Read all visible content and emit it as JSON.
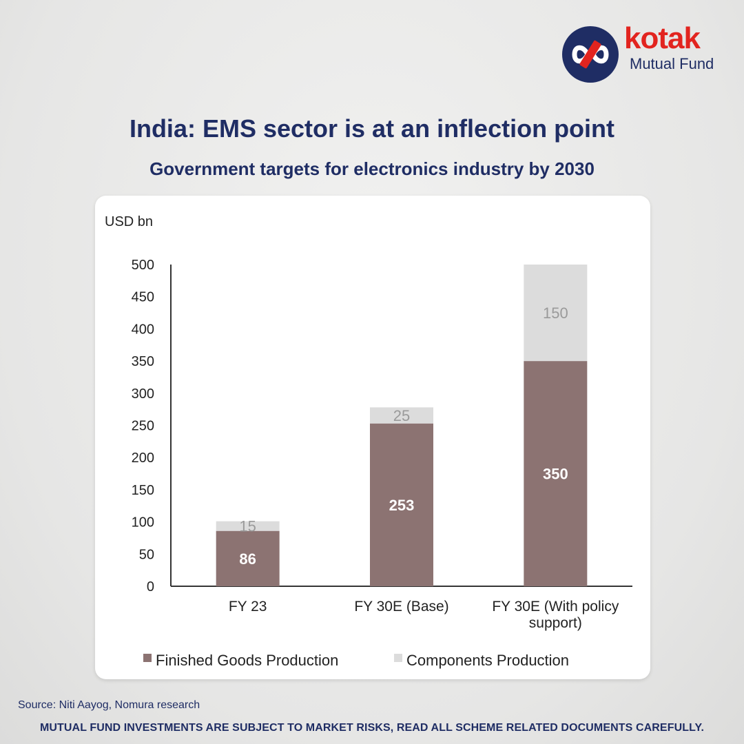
{
  "brand": {
    "name": "kotak",
    "tagline": "Mutual Fund"
  },
  "colors": {
    "navy": "#1f2d64",
    "brand_red": "#e2241f",
    "finished_goods": "#8c7372",
    "components": "#dcdcdc"
  },
  "icons": {
    "logo": "kotak-infinity-logo-icon"
  },
  "title": "India: EMS sector is at an inflection point",
  "subtitle": "Government targets for electronics industry by 2030",
  "source": "Source: Niti Aayog, Nomura research",
  "disclaimer": "MUTUAL FUND INVESTMENTS ARE SUBJECT TO MARKET RISKS, READ ALL SCHEME RELATED DOCUMENTS CAREFULLY.",
  "chart_data": {
    "type": "bar",
    "stacked": true,
    "ylabel": "USD bn",
    "xlabel": "",
    "ylim": [
      0,
      500
    ],
    "yticks": [
      0,
      50,
      100,
      150,
      200,
      250,
      300,
      350,
      400,
      450,
      500
    ],
    "categories": [
      [
        "FY 23"
      ],
      [
        "FY 30E (Base)"
      ],
      [
        "FY 30E (With policy",
        "support)"
      ]
    ],
    "series": [
      {
        "name": "Finished Goods Production",
        "values": [
          86,
          253,
          350
        ],
        "color": "#8c7372"
      },
      {
        "name": "Components Production",
        "values": [
          15,
          25,
          150
        ],
        "color": "#dcdcdc"
      }
    ],
    "grid": false,
    "legend": "bottom"
  }
}
